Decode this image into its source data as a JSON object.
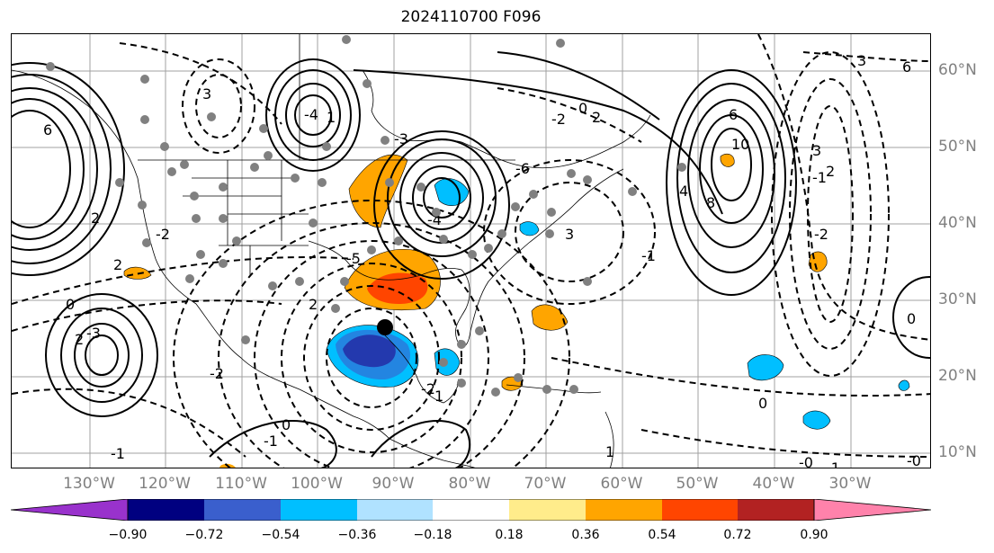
{
  "title": "2024110700 F096",
  "lat_labels": [
    "60°N",
    "50°N",
    "40°N",
    "30°N",
    "20°N",
    "10°N"
  ],
  "lon_labels": [
    "130°W",
    "120°W",
    "110°W",
    "100°W",
    "90°W",
    "80°W",
    "70°W",
    "60°W",
    "50°W",
    "40°W",
    "30°W"
  ],
  "colorbar": {
    "ticks": [
      "−0.90",
      "−0.72",
      "−0.54",
      "−0.36",
      "−0.18",
      "0.18",
      "0.36",
      "0.54",
      "0.72",
      "0.90"
    ],
    "colors": [
      "#9932cc",
      "#000080",
      "#3a5fcd",
      "#00bfff",
      "#b0e2ff",
      "#ffffff",
      "#ffec8b",
      "#ffa500",
      "#ff4500",
      "#b22222",
      "#ff82ab"
    ]
  },
  "contour_labels": [
    "6",
    "2",
    "-2",
    "2",
    "3",
    "0",
    "1",
    "-4",
    "-6",
    "-2",
    "-3",
    "-5",
    "2",
    "3",
    "2",
    "-1",
    "0",
    "6",
    "10",
    "8",
    "4",
    "-1",
    "-2",
    "3",
    "2",
    "3",
    "0",
    "-2",
    "-1",
    "-0",
    "6",
    "-4",
    "2",
    "-3",
    "0",
    "-1",
    "-2",
    "1",
    "0",
    "-1",
    "1",
    "-0"
  ]
}
